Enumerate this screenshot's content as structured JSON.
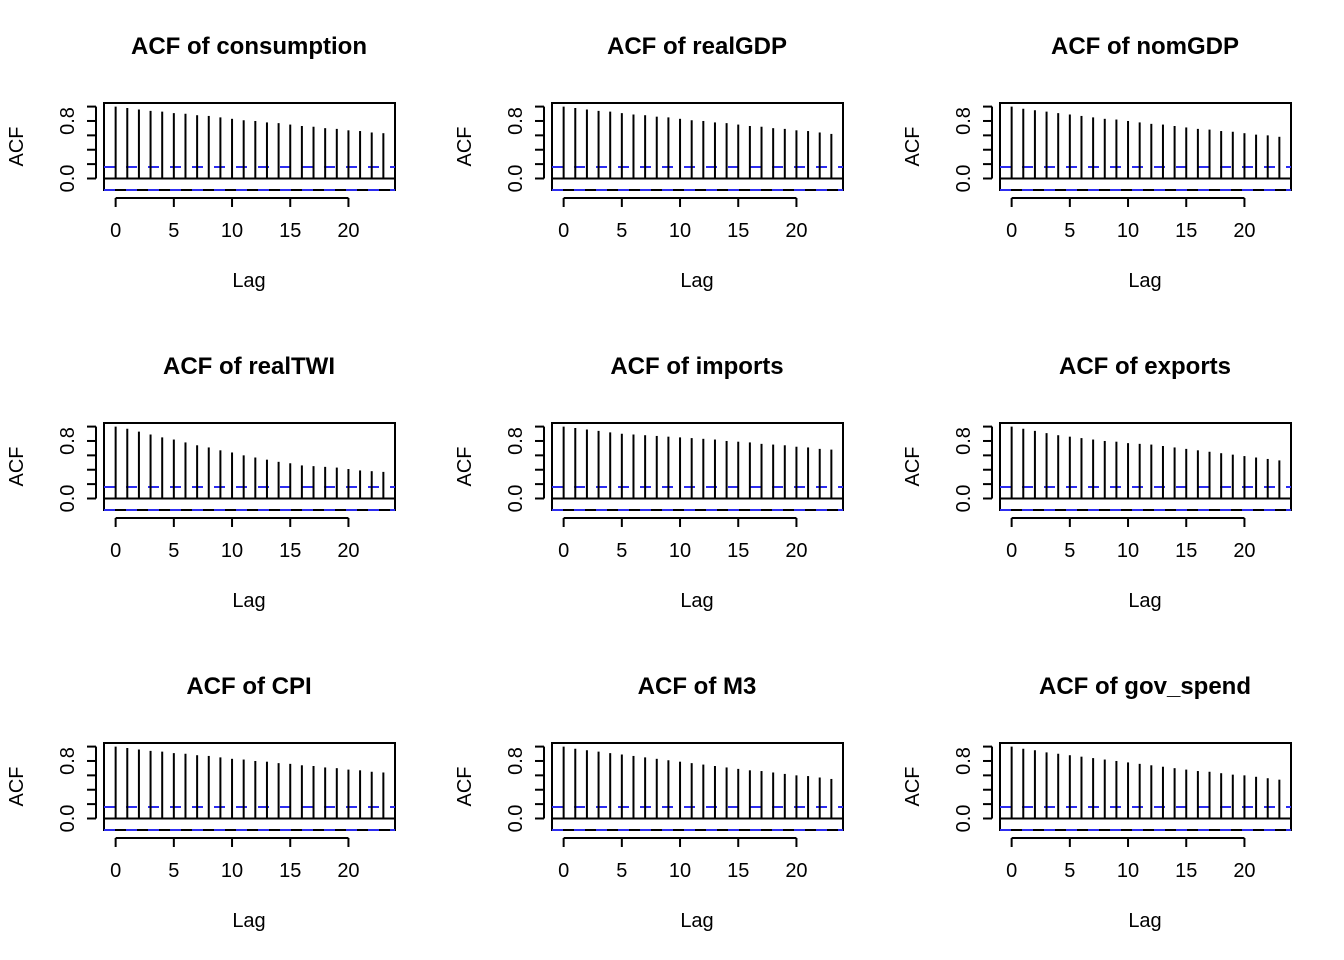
{
  "colors": {
    "bars": "#000000",
    "ci": "#2c2cf0",
    "zero": "#000000",
    "frame": "#000000"
  },
  "layout": {
    "rows": 3,
    "cols": 3
  },
  "chart_data": [
    {
      "type": "bar",
      "title": "ACF of consumption",
      "xlabel": "Lag",
      "ylabel": "ACF",
      "x": [
        0,
        1,
        2,
        3,
        4,
        5,
        6,
        7,
        8,
        9,
        10,
        11,
        12,
        13,
        14,
        15,
        16,
        17,
        18,
        19,
        20,
        21,
        22,
        23
      ],
      "values": [
        1.0,
        0.98,
        0.96,
        0.94,
        0.93,
        0.91,
        0.9,
        0.88,
        0.87,
        0.85,
        0.83,
        0.81,
        0.8,
        0.78,
        0.77,
        0.75,
        0.73,
        0.72,
        0.7,
        0.69,
        0.67,
        0.66,
        0.64,
        0.63
      ],
      "ci": 0.16,
      "xticks": [
        0,
        5,
        10,
        15,
        20
      ],
      "yticks": [
        "0.0",
        "0.8"
      ],
      "ylim": [
        -0.16,
        1.05
      ],
      "xlim": [
        -1,
        24
      ]
    },
    {
      "type": "bar",
      "title": "ACF of realGDP",
      "xlabel": "Lag",
      "ylabel": "ACF",
      "x": [
        0,
        1,
        2,
        3,
        4,
        5,
        6,
        7,
        8,
        9,
        10,
        11,
        12,
        13,
        14,
        15,
        16,
        17,
        18,
        19,
        20,
        21,
        22,
        23
      ],
      "values": [
        1.0,
        0.98,
        0.96,
        0.94,
        0.93,
        0.91,
        0.89,
        0.88,
        0.86,
        0.85,
        0.83,
        0.81,
        0.8,
        0.78,
        0.77,
        0.75,
        0.73,
        0.72,
        0.7,
        0.69,
        0.67,
        0.66,
        0.64,
        0.62
      ],
      "ci": 0.16,
      "xticks": [
        0,
        5,
        10,
        15,
        20
      ],
      "yticks": [
        "0.0",
        "0.8"
      ],
      "ylim": [
        -0.16,
        1.05
      ],
      "xlim": [
        -1,
        24
      ]
    },
    {
      "type": "bar",
      "title": "ACF of nomGDP",
      "xlabel": "Lag",
      "ylabel": "ACF",
      "x": [
        0,
        1,
        2,
        3,
        4,
        5,
        6,
        7,
        8,
        9,
        10,
        11,
        12,
        13,
        14,
        15,
        16,
        17,
        18,
        19,
        20,
        21,
        22,
        23
      ],
      "values": [
        1.0,
        0.97,
        0.95,
        0.93,
        0.91,
        0.89,
        0.87,
        0.85,
        0.83,
        0.82,
        0.8,
        0.78,
        0.76,
        0.75,
        0.73,
        0.71,
        0.69,
        0.68,
        0.66,
        0.65,
        0.63,
        0.61,
        0.6,
        0.58
      ],
      "ci": 0.16,
      "xticks": [
        0,
        5,
        10,
        15,
        20
      ],
      "yticks": [
        "0.0",
        "0.8"
      ],
      "ylim": [
        -0.16,
        1.05
      ],
      "xlim": [
        -1,
        24
      ]
    },
    {
      "type": "bar",
      "title": "ACF of realTWI",
      "xlabel": "Lag",
      "ylabel": "ACF",
      "x": [
        0,
        1,
        2,
        3,
        4,
        5,
        6,
        7,
        8,
        9,
        10,
        11,
        12,
        13,
        14,
        15,
        16,
        17,
        18,
        19,
        20,
        21,
        22,
        23
      ],
      "values": [
        1.0,
        0.97,
        0.93,
        0.89,
        0.85,
        0.82,
        0.78,
        0.74,
        0.71,
        0.67,
        0.64,
        0.6,
        0.57,
        0.54,
        0.51,
        0.49,
        0.46,
        0.45,
        0.44,
        0.43,
        0.41,
        0.39,
        0.38,
        0.37
      ],
      "ci": 0.16,
      "xticks": [
        0,
        5,
        10,
        15,
        20
      ],
      "yticks": [
        "0.0",
        "0.8"
      ],
      "ylim": [
        -0.16,
        1.05
      ],
      "xlim": [
        -1,
        24
      ]
    },
    {
      "type": "bar",
      "title": "ACF of imports",
      "xlabel": "Lag",
      "ylabel": "ACF",
      "x": [
        0,
        1,
        2,
        3,
        4,
        5,
        6,
        7,
        8,
        9,
        10,
        11,
        12,
        13,
        14,
        15,
        16,
        17,
        18,
        19,
        20,
        21,
        22,
        23
      ],
      "values": [
        1.0,
        0.98,
        0.96,
        0.94,
        0.92,
        0.9,
        0.89,
        0.88,
        0.87,
        0.86,
        0.85,
        0.84,
        0.83,
        0.82,
        0.8,
        0.79,
        0.78,
        0.76,
        0.75,
        0.74,
        0.72,
        0.71,
        0.69,
        0.68
      ],
      "ci": 0.16,
      "xticks": [
        0,
        5,
        10,
        15,
        20
      ],
      "yticks": [
        "0.0",
        "0.8"
      ],
      "ylim": [
        -0.16,
        1.05
      ],
      "xlim": [
        -1,
        24
      ]
    },
    {
      "type": "bar",
      "title": "ACF of exports",
      "xlabel": "Lag",
      "ylabel": "ACF",
      "x": [
        0,
        1,
        2,
        3,
        4,
        5,
        6,
        7,
        8,
        9,
        10,
        11,
        12,
        13,
        14,
        15,
        16,
        17,
        18,
        19,
        20,
        21,
        22,
        23
      ],
      "values": [
        1.0,
        0.97,
        0.94,
        0.91,
        0.88,
        0.86,
        0.84,
        0.82,
        0.8,
        0.79,
        0.77,
        0.76,
        0.75,
        0.73,
        0.71,
        0.69,
        0.67,
        0.65,
        0.63,
        0.61,
        0.59,
        0.57,
        0.55,
        0.53
      ],
      "ci": 0.16,
      "xticks": [
        0,
        5,
        10,
        15,
        20
      ],
      "yticks": [
        "0.0",
        "0.8"
      ],
      "ylim": [
        -0.16,
        1.05
      ],
      "xlim": [
        -1,
        24
      ]
    },
    {
      "type": "bar",
      "title": "ACF of CPI",
      "xlabel": "Lag",
      "ylabel": "ACF",
      "x": [
        0,
        1,
        2,
        3,
        4,
        5,
        6,
        7,
        8,
        9,
        10,
        11,
        12,
        13,
        14,
        15,
        16,
        17,
        18,
        19,
        20,
        21,
        22,
        23
      ],
      "values": [
        1.0,
        0.98,
        0.96,
        0.94,
        0.93,
        0.91,
        0.9,
        0.88,
        0.87,
        0.85,
        0.83,
        0.82,
        0.8,
        0.79,
        0.77,
        0.76,
        0.74,
        0.73,
        0.71,
        0.7,
        0.68,
        0.67,
        0.65,
        0.64
      ],
      "ci": 0.16,
      "xticks": [
        0,
        5,
        10,
        15,
        20
      ],
      "yticks": [
        "0.0",
        "0.8"
      ],
      "ylim": [
        -0.16,
        1.05
      ],
      "xlim": [
        -1,
        24
      ]
    },
    {
      "type": "bar",
      "title": "ACF of M3",
      "xlabel": "Lag",
      "ylabel": "ACF",
      "x": [
        0,
        1,
        2,
        3,
        4,
        5,
        6,
        7,
        8,
        9,
        10,
        11,
        12,
        13,
        14,
        15,
        16,
        17,
        18,
        19,
        20,
        21,
        22,
        23
      ],
      "values": [
        1.0,
        0.97,
        0.95,
        0.93,
        0.91,
        0.89,
        0.87,
        0.85,
        0.83,
        0.81,
        0.79,
        0.77,
        0.75,
        0.73,
        0.71,
        0.69,
        0.67,
        0.66,
        0.64,
        0.62,
        0.6,
        0.59,
        0.57,
        0.55
      ],
      "ci": 0.16,
      "xticks": [
        0,
        5,
        10,
        15,
        20
      ],
      "yticks": [
        "0.0",
        "0.8"
      ],
      "ylim": [
        -0.16,
        1.05
      ],
      "xlim": [
        -1,
        24
      ]
    },
    {
      "type": "bar",
      "title": "ACF of gov_spend",
      "xlabel": "Lag",
      "ylabel": "ACF",
      "x": [
        0,
        1,
        2,
        3,
        4,
        5,
        6,
        7,
        8,
        9,
        10,
        11,
        12,
        13,
        14,
        15,
        16,
        17,
        18,
        19,
        20,
        21,
        22,
        23
      ],
      "values": [
        1.0,
        0.97,
        0.95,
        0.92,
        0.9,
        0.88,
        0.86,
        0.84,
        0.82,
        0.8,
        0.78,
        0.76,
        0.74,
        0.72,
        0.7,
        0.68,
        0.66,
        0.65,
        0.63,
        0.61,
        0.6,
        0.58,
        0.56,
        0.54
      ],
      "ci": 0.16,
      "xticks": [
        0,
        5,
        10,
        15,
        20
      ],
      "yticks": [
        "0.0",
        "0.8"
      ],
      "ylim": [
        -0.16,
        1.05
      ],
      "xlim": [
        -1,
        24
      ]
    }
  ]
}
